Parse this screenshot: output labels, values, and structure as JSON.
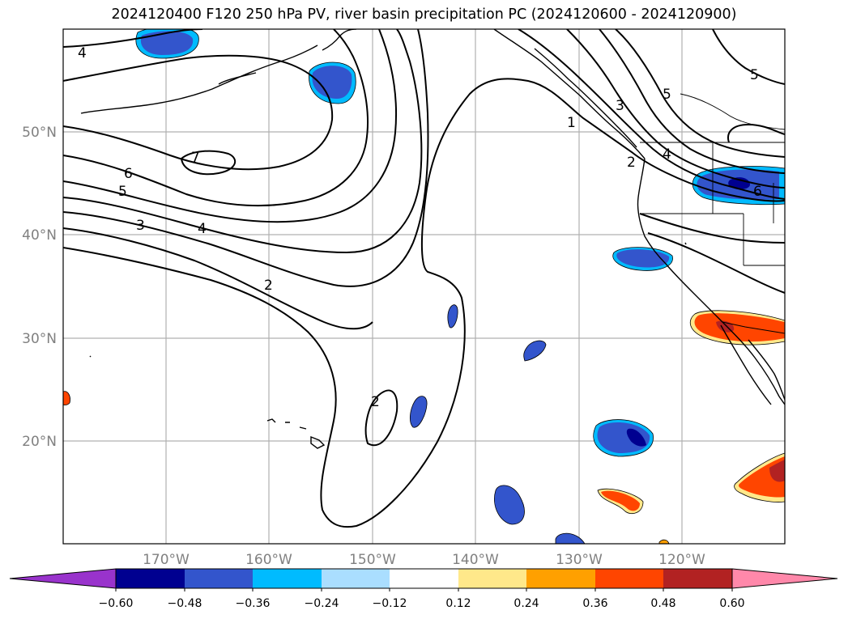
{
  "title": "2024120400 F120 250 hPa PV, river basin precipitation PC (2024120600 - 2024120900)",
  "map": {
    "lon_range": [
      -180,
      -110
    ],
    "lat_range": [
      10,
      60
    ],
    "lon_ticks": [
      "170°W",
      "160°W",
      "150°W",
      "140°W",
      "130°W",
      "120°W"
    ],
    "lat_ticks": [
      "50°N",
      "40°N",
      "30°N",
      "20°N"
    ],
    "grid": true,
    "projection": "PlateCarree",
    "contour_field": "250 hPa PV",
    "contour_labels": [
      "4",
      "7",
      "6",
      "5",
      "3",
      "4",
      "2",
      "2",
      "1",
      "3",
      "5",
      "4",
      "2",
      "5",
      "6"
    ],
    "filled_field": "river basin precipitation PC"
  },
  "colorbar": {
    "orientation": "horizontal",
    "extend": "both",
    "colors": [
      "#9933cc",
      "#000090",
      "#3355cc",
      "#00bbff",
      "#aadeff",
      "#ffffff",
      "#ffe88a",
      "#ffa000",
      "#ff4500",
      "#b22222",
      "#ff88aa"
    ],
    "tick_labels": [
      "−0.60",
      "−0.48",
      "−0.36",
      "−0.24",
      "−0.12",
      "0.12",
      "0.24",
      "0.36",
      "0.48",
      "0.60"
    ]
  }
}
